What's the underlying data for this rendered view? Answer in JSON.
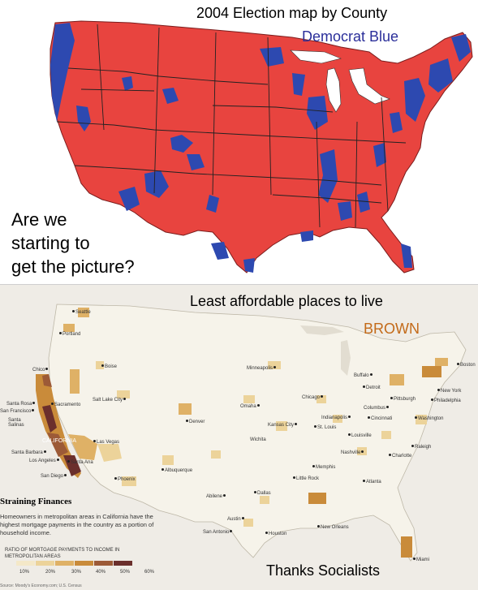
{
  "top_map": {
    "title": "2004 Election map by County",
    "subtitle": "Democrat Blue",
    "caption_lines": [
      "Are we",
      "starting to",
      "get the picture?"
    ],
    "colors": {
      "republican": "#e8443f",
      "democrat": "#2d49b0",
      "border": "#222222"
    }
  },
  "bottom_map": {
    "title": "Least affordable places to live",
    "subtitle": "BROWN",
    "caption": "Thanks Socialists",
    "state_label": "CALIFORNIA",
    "cities": [
      {
        "name": "Seattle"
      },
      {
        "name": "Portland"
      },
      {
        "name": "Boise"
      },
      {
        "name": "Minneapolis"
      },
      {
        "name": "Buffalo"
      },
      {
        "name": "Boston"
      },
      {
        "name": "Detroit"
      },
      {
        "name": "New York"
      },
      {
        "name": "Chicago"
      },
      {
        "name": "Pittsburgh"
      },
      {
        "name": "Philadelphia"
      },
      {
        "name": "Columbus"
      },
      {
        "name": "Omaha"
      },
      {
        "name": "Salt Lake City"
      },
      {
        "name": "Chico"
      },
      {
        "name": "Santa Rosa"
      },
      {
        "name": "Sacramento"
      },
      {
        "name": "San Francisco"
      },
      {
        "name": "Santa Salinas"
      },
      {
        "name": "Indianapolis"
      },
      {
        "name": "Cincinnati"
      },
      {
        "name": "Washington"
      },
      {
        "name": "Kansas City"
      },
      {
        "name": "St. Louis"
      },
      {
        "name": "Denver"
      },
      {
        "name": "Louisville"
      },
      {
        "name": "Las Vegas"
      },
      {
        "name": "Wichita"
      },
      {
        "name": "Nashville"
      },
      {
        "name": "Raleigh"
      },
      {
        "name": "Charlotte"
      },
      {
        "name": "Santa Barbara"
      },
      {
        "name": "Los Angeles"
      },
      {
        "name": "Santa Ana"
      },
      {
        "name": "Memphis"
      },
      {
        "name": "Albuquerque"
      },
      {
        "name": "San Diego"
      },
      {
        "name": "Phoenix"
      },
      {
        "name": "Little Rock"
      },
      {
        "name": "Atlanta"
      },
      {
        "name": "Abilene"
      },
      {
        "name": "Dallas"
      },
      {
        "name": "Austin"
      },
      {
        "name": "San Antonio"
      },
      {
        "name": "Houston"
      },
      {
        "name": "New Orleans"
      },
      {
        "name": "Miami"
      }
    ],
    "legend": {
      "title": "Straining Finances",
      "description": "Homeowners in metropolitan areas in California have the highest mortgage payments in the country as a portion of household income.",
      "ratio_label": "RATIO OF MORTGAGE PAYMENTS TO INCOME IN METROPOLITAN AREAS",
      "ticks": [
        "10%",
        "20%",
        "30%",
        "40%",
        "50%",
        "60%"
      ],
      "colors": [
        "#f4e8c8",
        "#ecd39a",
        "#dfb166",
        "#c98b3a",
        "#9c5a37",
        "#6b2f2c"
      ],
      "source": "Source: Moody's Economy.com; U.S. Census"
    }
  }
}
